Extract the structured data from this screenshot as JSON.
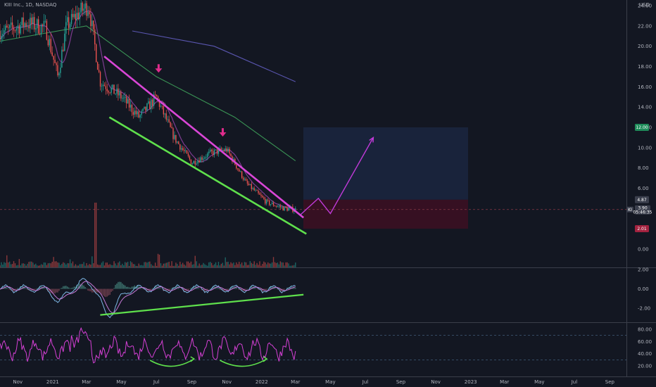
{
  "header": {
    "symbol_title": "KIII Inc., 1D, NASDAQ",
    "currency": "USD"
  },
  "colors": {
    "background": "#131722",
    "up_candle": "#26a69a",
    "down_candle": "#ef5350",
    "channel_upper": "#d946d6",
    "channel_lower": "#5fe04c",
    "projection": "#c03ad8",
    "sell_marker": "#e02c8c",
    "ma_short": "#8a3f9c",
    "ma_mid": "#3a9455",
    "ma_long": "#5a56b0",
    "target_zone": "#1b2640",
    "stop_zone": "#3d0f22",
    "macd_line": "#7eb7e6",
    "signal_line": "#c77ad8",
    "rsi_line": "#d640d6",
    "target_badge": "#1e8c5a",
    "stop_badge": "#a3223f",
    "entry_badge": "#3b3f4d"
  },
  "price_axis": {
    "ticks": [
      "24.00",
      "22.00",
      "20.00",
      "18.00",
      "16.00",
      "14.00",
      "12.00",
      "10.00",
      "8.00",
      "6.00",
      "4.00",
      "2.00",
      "0.00"
    ],
    "target_label": "12.00",
    "entry_label": "4.87",
    "last_price_label": "3.90",
    "countdown_label": "05:46:35",
    "stop_label": "2.01",
    "last_price_symbol": "KI"
  },
  "macd_axis": {
    "ticks": [
      "2.00",
      "0.00",
      "-2.00"
    ]
  },
  "rsi_axis": {
    "ticks": [
      "80.00",
      "60.00",
      "40.00",
      "20.00"
    ]
  },
  "time_axis": {
    "labels": [
      "Nov",
      "2021",
      "Mar",
      "May",
      "Jul",
      "Sep",
      "Nov",
      "2022",
      "Mar",
      "May",
      "Jul",
      "Sep",
      "Nov",
      "2023",
      "Mar",
      "May",
      "Jul",
      "Sep"
    ]
  },
  "chart_data": {
    "type": "candlestick",
    "title": "KIII Inc., 1D, NASDAQ",
    "x_range": [
      "2020-10",
      "2023-09"
    ],
    "ylim": [
      0,
      24
    ],
    "price_trend": [
      {
        "date": "2020-10-15",
        "price": 21.5
      },
      {
        "date": "2020-11-15",
        "price": 22.3
      },
      {
        "date": "2020-12-20",
        "price": 21.8
      },
      {
        "date": "2021-01-10",
        "price": 17.0
      },
      {
        "date": "2021-01-25",
        "price": 22.0
      },
      {
        "date": "2021-02-20",
        "price": 23.5
      },
      {
        "date": "2021-03-05",
        "price": 24.0
      },
      {
        "date": "2021-03-25",
        "price": 16.5
      },
      {
        "date": "2021-05-01",
        "price": 15.0
      },
      {
        "date": "2021-06-01",
        "price": 13.0
      },
      {
        "date": "2021-07-01",
        "price": 15.0
      },
      {
        "date": "2021-08-01",
        "price": 11.0
      },
      {
        "date": "2021-09-01",
        "price": 8.5
      },
      {
        "date": "2021-10-05",
        "price": 9.5
      },
      {
        "date": "2021-11-01",
        "price": 9.8
      },
      {
        "date": "2021-12-05",
        "price": 6.5
      },
      {
        "date": "2022-01-10",
        "price": 4.6
      },
      {
        "date": "2022-02-10",
        "price": 4.0
      },
      {
        "date": "2022-03-01",
        "price": 3.9
      }
    ],
    "channel_upper": [
      {
        "date": "2021-04-01",
        "price": 19.0
      },
      {
        "date": "2022-03-15",
        "price": 3.1
      }
    ],
    "channel_lower": [
      {
        "date": "2021-04-10",
        "price": 13.0
      },
      {
        "date": "2022-03-20",
        "price": 1.5
      }
    ],
    "sell_markers": [
      {
        "date": "2021-07-05",
        "price": 17.6
      },
      {
        "date": "2021-10-25",
        "price": 11.3
      }
    ],
    "long_position": {
      "entry": 4.87,
      "target": 12.0,
      "stop": 2.01,
      "last_price": 3.9
    },
    "projection_path": [
      {
        "date": "2022-03-10",
        "price": 3.4
      },
      {
        "date": "2022-04-10",
        "price": 5.0
      },
      {
        "date": "2022-05-01",
        "price": 3.5
      },
      {
        "date": "2022-07-15",
        "price": 11.0
      }
    ],
    "ma_long": [
      {
        "date": "2021-05-20",
        "price": 21.5
      },
      {
        "date": "2021-10-10",
        "price": 20.0
      },
      {
        "date": "2022-03-01",
        "price": 16.5
      }
    ],
    "ma_mid": [
      {
        "date": "2020-10-01",
        "price": 20.5
      },
      {
        "date": "2021-03-01",
        "price": 22.0
      },
      {
        "date": "2021-07-01",
        "price": 17.0
      },
      {
        "date": "2021-11-15",
        "price": 13.0
      },
      {
        "date": "2022-03-01",
        "price": 8.7
      }
    ],
    "macd": {
      "ylim": [
        -3,
        3
      ],
      "trendline": [
        {
          "date": "2021-03-25",
          "price": -2.7
        },
        {
          "date": "2022-03-15",
          "price": -0.6
        }
      ]
    },
    "rsi": {
      "ylim": [
        0,
        100
      ],
      "levels": [
        70,
        30
      ]
    }
  }
}
